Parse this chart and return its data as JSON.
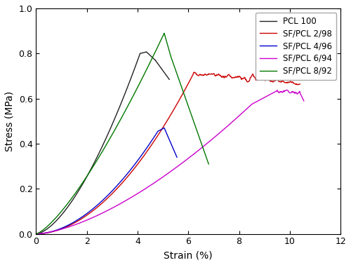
{
  "title": "",
  "xlabel": "Strain (%)",
  "ylabel": "Stress (MPa)",
  "xlim": [
    0,
    12
  ],
  "ylim": [
    0,
    1.0
  ],
  "xticks": [
    0,
    2,
    4,
    6,
    8,
    10,
    12
  ],
  "yticks": [
    0.0,
    0.2,
    0.4,
    0.6,
    0.8,
    1.0
  ],
  "series": [
    {
      "label": "PCL 100",
      "color": "#222222",
      "linewidth": 1.0
    },
    {
      "label": "SF/PCL 2/98",
      "color": "#cc0000",
      "linewidth": 1.0
    },
    {
      "label": "SF/PCL 4/96",
      "color": "#0000cc",
      "linewidth": 1.0
    },
    {
      "label": "SF/PCL 6/94",
      "color": "#cc00cc",
      "linewidth": 1.0
    },
    {
      "label": "SF/PCL 8/92",
      "color": "#007700",
      "linewidth": 1.0
    }
  ],
  "legend_loc": "upper right",
  "font_size": 10
}
